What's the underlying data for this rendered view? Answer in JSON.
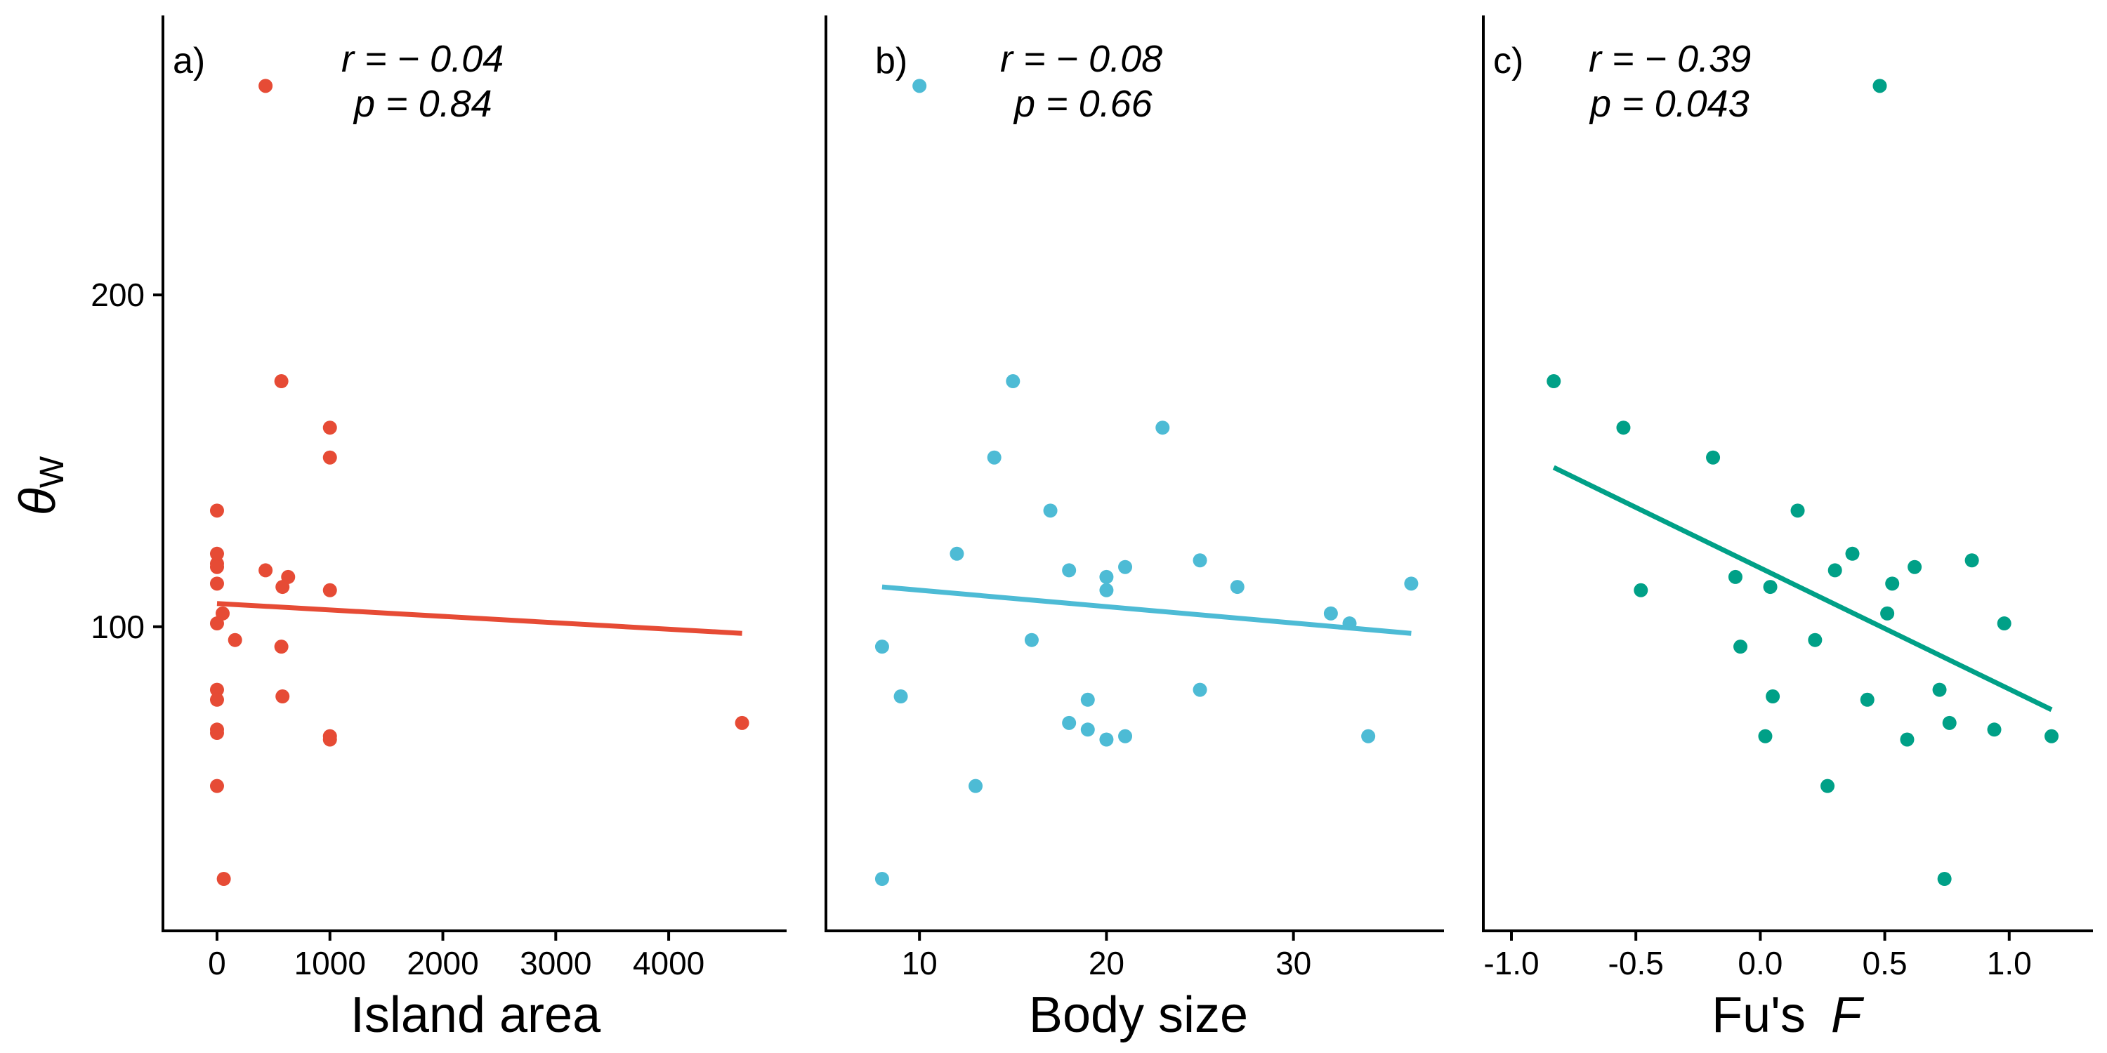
{
  "y_axis": {
    "label": "θ",
    "label_sub": "W",
    "ticks": [
      100,
      200
    ],
    "ylim": [
      13,
      280
    ]
  },
  "chart_data": [
    {
      "type": "scatter",
      "panel_tag": "a)",
      "stat_r": "r = − 0.04",
      "stat_p": "p = 0.84",
      "xlabel": "Island area",
      "xlim": [
        -230,
        4920
      ],
      "ylim": [
        13,
        280
      ],
      "xticks": [
        0,
        1000,
        2000,
        3000,
        4000
      ],
      "xtick_labels": [
        "0",
        "1000",
        "2000",
        "3000",
        "4000"
      ],
      "color": "#E64B35",
      "fit": {
        "x": [
          0,
          4650
        ],
        "y": [
          107,
          98
        ]
      },
      "points": [
        [
          430,
          263
        ],
        [
          570,
          174
        ],
        [
          1000,
          160
        ],
        [
          1000,
          151
        ],
        [
          0,
          135
        ],
        [
          0,
          122
        ],
        [
          0,
          119
        ],
        [
          0,
          118
        ],
        [
          430,
          117
        ],
        [
          630,
          115
        ],
        [
          0,
          113
        ],
        [
          580,
          112
        ],
        [
          1000,
          111
        ],
        [
          50,
          104
        ],
        [
          0,
          101
        ],
        [
          160,
          96
        ],
        [
          570,
          94
        ],
        [
          0,
          81
        ],
        [
          580,
          79
        ],
        [
          0,
          78
        ],
        [
          4650,
          71
        ],
        [
          0,
          69
        ],
        [
          0,
          68
        ],
        [
          1000,
          66
        ],
        [
          1000,
          67
        ],
        [
          0,
          52
        ],
        [
          60,
          24
        ]
      ]
    },
    {
      "type": "scatter",
      "panel_tag": "b)",
      "stat_r": "r = − 0.08",
      "stat_p": "p = 0.66",
      "xlabel": "Body size",
      "xlim": [
        6.5,
        37.3
      ],
      "ylim": [
        13,
        280
      ],
      "xticks": [
        10,
        20,
        30
      ],
      "xtick_labels": [
        "10",
        "20",
        "30"
      ],
      "color": "#4DBBD5",
      "fit": {
        "x": [
          8,
          36.3
        ],
        "y": [
          112,
          98
        ]
      },
      "points": [
        [
          10,
          263
        ],
        [
          15,
          174
        ],
        [
          23,
          160
        ],
        [
          14,
          151
        ],
        [
          17,
          135
        ],
        [
          12,
          122
        ],
        [
          25,
          120
        ],
        [
          21,
          118
        ],
        [
          18,
          117
        ],
        [
          20,
          115
        ],
        [
          36.3,
          113
        ],
        [
          27,
          112
        ],
        [
          20,
          111
        ],
        [
          32,
          104
        ],
        [
          33,
          101
        ],
        [
          16,
          96
        ],
        [
          8,
          94
        ],
        [
          25,
          81
        ],
        [
          9,
          79
        ],
        [
          19,
          78
        ],
        [
          18,
          71
        ],
        [
          19,
          69
        ],
        [
          21,
          67
        ],
        [
          20,
          66
        ],
        [
          34,
          67
        ],
        [
          13,
          52
        ],
        [
          8,
          24
        ]
      ]
    },
    {
      "type": "scatter",
      "panel_tag": "c)",
      "stat_r": "r = − 0.39",
      "stat_p": "p = 0.043",
      "xlabel_main": "Fu's",
      "xlabel_var": "F",
      "xlim": [
        -1.0,
        1.28
      ],
      "ylim": [
        13,
        280
      ],
      "xticks": [
        -1.0,
        -0.5,
        0.0,
        0.5,
        1.0
      ],
      "xtick_labels": [
        "-1.0",
        "-0.5",
        "0.0",
        "0.5",
        "1.0"
      ],
      "color": "#00A087",
      "fit": {
        "x": [
          -0.83,
          1.17
        ],
        "y": [
          148,
          75
        ]
      },
      "points": [
        [
          0.48,
          263
        ],
        [
          -0.83,
          174
        ],
        [
          -0.55,
          160
        ],
        [
          -0.19,
          151
        ],
        [
          0.15,
          135
        ],
        [
          0.37,
          122
        ],
        [
          0.85,
          120
        ],
        [
          0.62,
          118
        ],
        [
          0.3,
          117
        ],
        [
          -0.1,
          115
        ],
        [
          0.53,
          113
        ],
        [
          0.04,
          112
        ],
        [
          -0.48,
          111
        ],
        [
          0.51,
          104
        ],
        [
          0.98,
          101
        ],
        [
          0.22,
          96
        ],
        [
          -0.08,
          94
        ],
        [
          0.72,
          81
        ],
        [
          0.43,
          78
        ],
        [
          0.05,
          79
        ],
        [
          0.76,
          71
        ],
        [
          0.94,
          69
        ],
        [
          0.02,
          67
        ],
        [
          0.59,
          66
        ],
        [
          1.17,
          67
        ],
        [
          0.27,
          52
        ],
        [
          0.74,
          24
        ]
      ]
    }
  ]
}
